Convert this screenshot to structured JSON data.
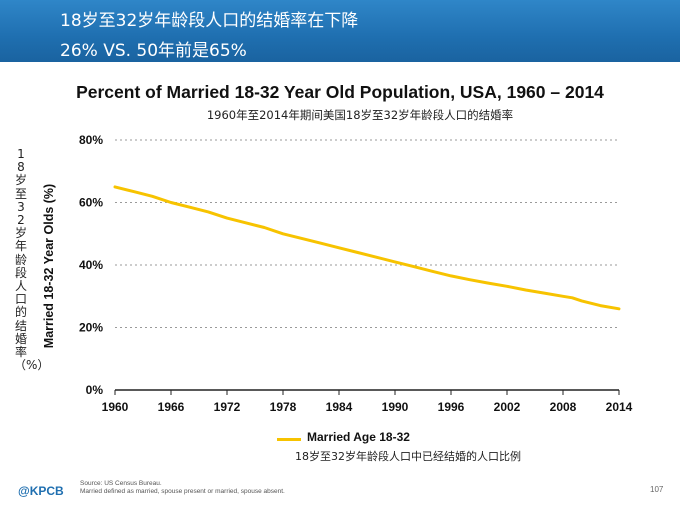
{
  "header": {
    "line1": "18岁至32岁年龄段人口的结婚率在下降",
    "line2": "26% VS. 50年前是65%"
  },
  "chart_data": {
    "type": "line",
    "title": "Percent of Married 18-32 Year Old Population, USA, 1960 – 2014",
    "subtitle": "1960年至2014年期间美国18岁至32岁年龄段人口的结婚率",
    "ylabel": "Married 18-32 Year Olds (%)",
    "ylabel_cn": "18岁至32岁年龄段人口的结婚率（%）",
    "xlim": [
      1960,
      2014
    ],
    "ylim": [
      0,
      80
    ],
    "x_ticks": [
      1960,
      1966,
      1972,
      1978,
      1984,
      1990,
      1996,
      2002,
      2008,
      2014
    ],
    "y_ticks": [
      0,
      20,
      40,
      60,
      80
    ],
    "y_tick_labels": [
      "0%",
      "20%",
      "40%",
      "60%",
      "80%"
    ],
    "grid": "horizontal dotted",
    "legend_position": "bottom",
    "series": [
      {
        "name": "Married Age 18-32",
        "name_cn": "18岁至32岁年龄段人口中已经结婚的人口比例",
        "color": "#f7c300",
        "x": [
          1960,
          1962,
          1964,
          1966,
          1968,
          1970,
          1972,
          1974,
          1976,
          1978,
          1980,
          1982,
          1984,
          1986,
          1988,
          1990,
          1992,
          1994,
          1996,
          1998,
          2000,
          2002,
          2004,
          2006,
          2008,
          2009,
          2010,
          2012,
          2014
        ],
        "values": [
          65,
          63.5,
          62,
          60,
          58.5,
          57,
          55,
          53.5,
          52,
          50,
          48.5,
          47,
          45.5,
          44,
          42.5,
          41,
          39.5,
          38,
          36.5,
          35.3,
          34.2,
          33.2,
          32,
          31,
          30,
          29.5,
          28.5,
          27,
          26
        ]
      }
    ]
  },
  "footer": {
    "logo": "@KPCB",
    "source_line1": "Source: US Census Bureau.",
    "source_line2": "Married defined as married, spouse present or married, spouse absent.",
    "page": "107"
  }
}
